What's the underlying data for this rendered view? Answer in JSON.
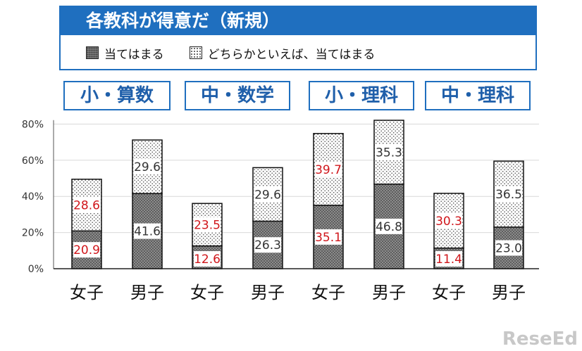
{
  "header": {
    "title": "各教科が得意だ（新規）"
  },
  "legend": {
    "items": [
      {
        "label": "当てはまる",
        "pattern": "dark"
      },
      {
        "label": "どちらかといえば、当てはまる",
        "pattern": "light"
      }
    ]
  },
  "subjects": [
    "小・算数",
    "中・数学",
    "小・理科",
    "中・理科"
  ],
  "colors": {
    "accent": "#1f6fbf",
    "female_label": "#d0161b",
    "male_label": "#333333"
  },
  "chart_data": {
    "type": "bar",
    "stacked": true,
    "categories": [
      "女子",
      "男子",
      "女子",
      "男子",
      "女子",
      "男子",
      "女子",
      "男子"
    ],
    "series": [
      {
        "name": "当てはまる",
        "values": [
          20.9,
          41.6,
          12.6,
          26.3,
          35.1,
          46.8,
          11.4,
          23.0
        ]
      },
      {
        "name": "どちらかといえば、当てはまる",
        "values": [
          28.6,
          29.6,
          23.5,
          29.6,
          39.7,
          35.3,
          30.3,
          36.5
        ]
      }
    ],
    "value_labels": {
      "bottom": [
        "20.9",
        "41.6",
        "12.6",
        "26.3",
        "35.1",
        "46.8",
        "11.4",
        "23.0"
      ],
      "top": [
        "28.6",
        "29.6",
        "23.5",
        "29.6",
        "39.7",
        "35.3",
        "30.3",
        "36.5"
      ]
    },
    "y_ticks": [
      "0%",
      "20%",
      "40%",
      "60%",
      "80%"
    ],
    "ylim": [
      0,
      90
    ],
    "grid": true
  },
  "watermark": "ReseEd"
}
